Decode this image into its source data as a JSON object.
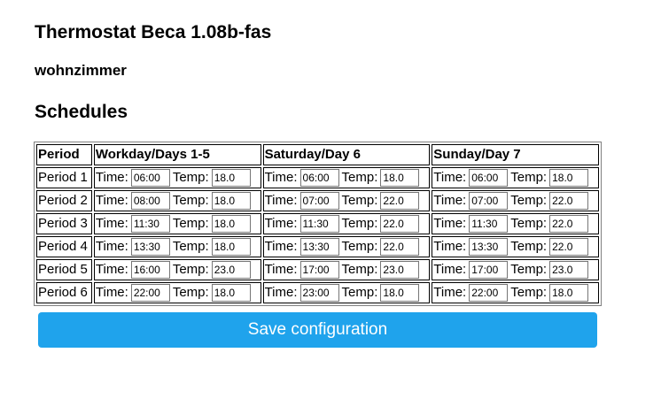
{
  "title": "Thermostat Beca 1.08b-fas",
  "device_name": "wohnzimmer",
  "section_title": "Schedules",
  "table": {
    "headers": [
      "Period",
      "Workday/Days 1-5",
      "Saturday/Day 6",
      "Sunday/Day 7"
    ],
    "time_label": "Time:",
    "temp_label": "Temp:",
    "rows": [
      {
        "period": "Period 1",
        "days": [
          {
            "time": "06:00",
            "temp": "18.0"
          },
          {
            "time": "06:00",
            "temp": "18.0"
          },
          {
            "time": "06:00",
            "temp": "18.0"
          }
        ]
      },
      {
        "period": "Period 2",
        "days": [
          {
            "time": "08:00",
            "temp": "18.0"
          },
          {
            "time": "07:00",
            "temp": "22.0"
          },
          {
            "time": "07:00",
            "temp": "22.0"
          }
        ]
      },
      {
        "period": "Period 3",
        "days": [
          {
            "time": "11:30",
            "temp": "18.0"
          },
          {
            "time": "11:30",
            "temp": "22.0"
          },
          {
            "time": "11:30",
            "temp": "22.0"
          }
        ]
      },
      {
        "period": "Period 4",
        "days": [
          {
            "time": "13:30",
            "temp": "18.0"
          },
          {
            "time": "13:30",
            "temp": "22.0"
          },
          {
            "time": "13:30",
            "temp": "22.0"
          }
        ]
      },
      {
        "period": "Period 5",
        "days": [
          {
            "time": "16:00",
            "temp": "23.0"
          },
          {
            "time": "17:00",
            "temp": "23.0"
          },
          {
            "time": "17:00",
            "temp": "23.0"
          }
        ]
      },
      {
        "period": "Period 6",
        "days": [
          {
            "time": "22:00",
            "temp": "18.0"
          },
          {
            "time": "23:00",
            "temp": "18.0"
          },
          {
            "time": "22:00",
            "temp": "18.0"
          }
        ]
      }
    ]
  },
  "save_button": "Save configuration",
  "colors": {
    "accent": "#1fa3ec"
  }
}
